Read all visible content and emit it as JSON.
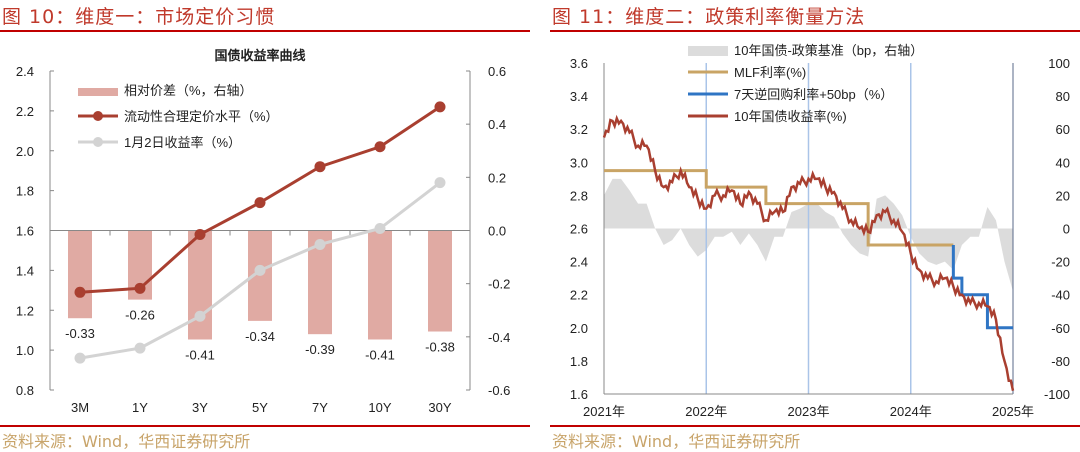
{
  "left": {
    "title": "图 10：维度一：市场定价习惯",
    "source": "资料来源：Wind，华西证券研究所",
    "chart_data": {
      "type": "bar+line",
      "title": "国债收益率曲线",
      "categories": [
        "3M",
        "1Y",
        "3Y",
        "5Y",
        "7Y",
        "10Y",
        "30Y"
      ],
      "ylim": [
        0.8,
        2.4
      ],
      "yticks": [
        "0.8",
        "1.0",
        "1.2",
        "1.4",
        "1.6",
        "1.8",
        "2.0",
        "2.2",
        "2.4"
      ],
      "y2lim": [
        -0.6,
        0.6
      ],
      "y2ticks": [
        "-0.6",
        "-0.4",
        "-0.2",
        "0.0",
        "0.2",
        "0.4",
        "0.6"
      ],
      "legend_position": "top-left",
      "grid": false,
      "series": [
        {
          "name": "相对价差（%，右轴）",
          "kind": "bar",
          "axis": "right",
          "color": "#e0aaa3",
          "values": [
            -0.33,
            -0.26,
            -0.41,
            -0.34,
            -0.39,
            -0.41,
            -0.38
          ],
          "labels": [
            "-0.33",
            "-0.26",
            "-0.41",
            "-0.34",
            "-0.39",
            "-0.41",
            "-0.38"
          ]
        },
        {
          "name": "流动性合理定价水平（%）",
          "kind": "line",
          "axis": "left",
          "color": "#a93f30",
          "values": [
            1.29,
            1.31,
            1.58,
            1.74,
            1.92,
            2.02,
            2.22
          ]
        },
        {
          "name": "1月2日收益率（%）",
          "kind": "line",
          "axis": "left",
          "color": "#d3d3d3",
          "values": [
            0.96,
            1.01,
            1.17,
            1.4,
            1.53,
            1.61,
            1.84
          ]
        }
      ]
    }
  },
  "right": {
    "title": "图 11：维度二：政策利率衡量方法",
    "source": "资料来源：Wind，华西证券研究所",
    "chart_data": {
      "type": "line+area",
      "xlim": [
        "2021-01",
        "2025-01"
      ],
      "xticks": [
        "2021年",
        "2022年",
        "2023年",
        "2024年",
        "2025年"
      ],
      "ylim": [
        1.6,
        3.6
      ],
      "yticks": [
        "1.6",
        "1.8",
        "2.0",
        "2.2",
        "2.4",
        "2.6",
        "2.8",
        "3.0",
        "3.2",
        "3.4",
        "3.6"
      ],
      "y2lim": [
        -100,
        100
      ],
      "y2ticks": [
        "-100",
        "-80",
        "-60",
        "-40",
        "-20",
        "0",
        "20",
        "40",
        "60",
        "80",
        "100"
      ],
      "legend_position": "top",
      "grid": "vertical at year boundaries",
      "months": [
        "2021-01",
        "2025-01"
      ],
      "series": [
        {
          "name": "10年国债-政策基准（bp，右轴）",
          "kind": "area",
          "axis": "right",
          "color": "#dcdcdc"
        },
        {
          "name": "MLF利率(%)",
          "kind": "step",
          "color": "#c9a465",
          "steps": [
            [
              "2021-01",
              2.95
            ],
            [
              "2022-01",
              2.85
            ],
            [
              "2022-08",
              2.75
            ],
            [
              "2023-08",
              2.5
            ],
            [
              "2024-06",
              2.5
            ]
          ]
        },
        {
          "name": "7天逆回购利率+50bp（%）",
          "kind": "step",
          "color": "#2f75c4",
          "steps": [
            [
              "2024-06",
              2.5
            ],
            [
              "2024-06",
              2.3
            ],
            [
              "2024-07",
              2.2
            ],
            [
              "2024-10",
              2.0
            ],
            [
              "2025-01",
              2.0
            ]
          ]
        },
        {
          "name": "10年国债收益率(%)",
          "kind": "line",
          "color": "#a93f30",
          "monthly_values": [
            3.15,
            3.25,
            3.25,
            3.18,
            3.1,
            3.1,
            2.95,
            2.85,
            2.88,
            2.95,
            2.85,
            2.78,
            2.72,
            2.8,
            2.8,
            2.83,
            2.75,
            2.82,
            2.75,
            2.65,
            2.7,
            2.7,
            2.85,
            2.87,
            2.9,
            2.9,
            2.85,
            2.82,
            2.72,
            2.65,
            2.6,
            2.58,
            2.68,
            2.7,
            2.65,
            2.58,
            2.45,
            2.35,
            2.3,
            2.28,
            2.3,
            2.25,
            2.2,
            2.15,
            2.15,
            2.13,
            2.05,
            1.8,
            1.62
          ]
        }
      ]
    }
  }
}
